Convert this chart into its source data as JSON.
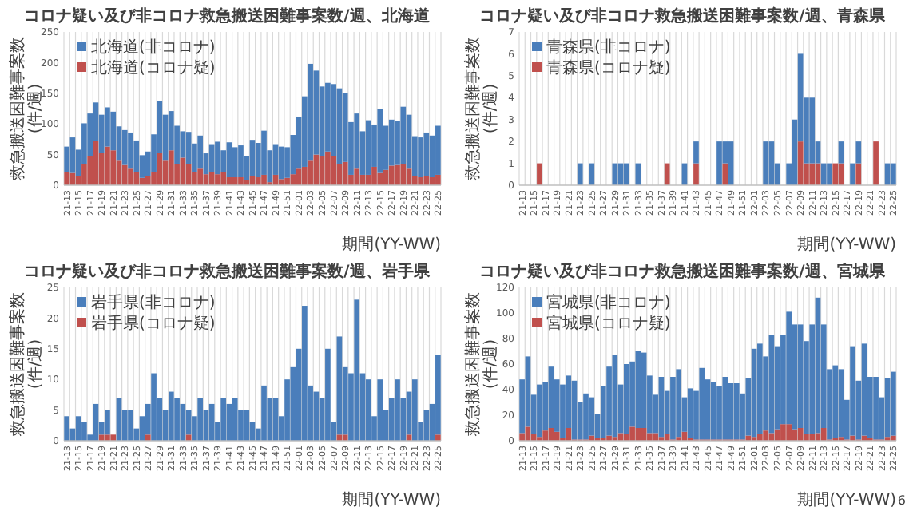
{
  "chart_data": [
    {
      "type": "bar",
      "stacked": true,
      "title": "コロナ疑い及び非コロナ救急搬送困難事案数/週、北海道",
      "ylabel": "救急搬送困難事案数(件/週)",
      "xlabel": "期間(YY-WW)",
      "legend": "top left",
      "grid": "x",
      "categories": [
        "21-13",
        null,
        "21-15",
        null,
        "21-17",
        null,
        "21-19",
        null,
        "21-21",
        null,
        "21-23",
        null,
        "21-25",
        null,
        "21-27",
        null,
        "21-29",
        null,
        "21-31",
        null,
        "21-33",
        null,
        "21-35",
        null,
        "21-37",
        null,
        "21-39",
        null,
        "21-41",
        null,
        "21-43",
        null,
        "21-45",
        null,
        "21-47",
        null,
        "21-49",
        null,
        "21-51",
        null,
        "22-01",
        null,
        "22-03",
        null,
        "22-05",
        null,
        "22-07",
        null,
        "22-09",
        null,
        "22-11",
        null,
        "22-13",
        null,
        "22-15",
        null,
        "22-17",
        null,
        "22-19",
        null,
        "22-21",
        null,
        "22-23",
        null,
        "22-25"
      ],
      "ylim": [
        0,
        250
      ],
      "yticks": [
        0,
        50,
        100,
        150,
        200,
        250
      ],
      "series": [
        {
          "name": "北海道(コロナ疑)",
          "color": "#c0504d",
          "values": [
            22,
            20,
            15,
            35,
            48,
            72,
            53,
            63,
            57,
            40,
            33,
            27,
            22,
            12,
            15,
            22,
            53,
            40,
            57,
            35,
            45,
            35,
            22,
            27,
            18,
            22,
            18,
            22,
            13,
            13,
            13,
            8,
            15,
            13,
            17,
            5,
            17,
            10,
            12,
            18,
            27,
            30,
            40,
            50,
            48,
            55,
            47,
            35,
            38,
            17,
            27,
            17,
            17,
            30,
            20,
            25,
            32,
            33,
            35,
            27,
            15,
            13,
            15,
            13,
            17
          ]
        },
        {
          "name": "北海道(非コロナ)",
          "color": "#4a7ebb",
          "values": [
            41,
            58,
            43,
            66,
            69,
            63,
            62,
            64,
            63,
            56,
            57,
            59,
            51,
            37,
            40,
            61,
            84,
            75,
            64,
            62,
            43,
            52,
            46,
            54,
            34,
            45,
            53,
            35,
            57,
            49,
            52,
            40,
            59,
            56,
            72,
            52,
            50,
            53,
            50,
            64,
            85,
            115,
            158,
            137,
            113,
            112,
            118,
            123,
            112,
            86,
            90,
            71,
            89,
            69,
            104,
            72,
            75,
            72,
            93,
            88,
            65,
            65,
            71,
            68,
            80
          ]
        }
      ]
    },
    {
      "type": "bar",
      "stacked": true,
      "title": "コロナ疑い及び非コロナ救急搬送困難事案数/週、青森県",
      "ylabel": "救急搬送困難事案数(件/週)",
      "xlabel": "期間(YY-WW)",
      "legend": "top left",
      "grid": "x",
      "categories": [
        "21-13",
        null,
        "21-15",
        null,
        "21-17",
        null,
        "21-19",
        null,
        "21-21",
        null,
        "21-23",
        null,
        "21-25",
        null,
        "21-27",
        null,
        "21-29",
        null,
        "21-31",
        null,
        "21-33",
        null,
        "21-35",
        null,
        "21-37",
        null,
        "21-39",
        null,
        "21-41",
        null,
        "21-43",
        null,
        "21-45",
        null,
        "21-47",
        null,
        "21-49",
        null,
        "21-51",
        null,
        "22-01",
        null,
        "22-03",
        null,
        "22-05",
        null,
        "22-07",
        null,
        "22-09",
        null,
        "22-11",
        null,
        "22-13",
        null,
        "22-15",
        null,
        "22-17",
        null,
        "22-19",
        null,
        "22-21",
        null,
        "22-23",
        null,
        "22-25"
      ],
      "ylim": [
        0,
        7
      ],
      "yticks": [
        0,
        1,
        2,
        3,
        4,
        5,
        6,
        7
      ],
      "series": [
        {
          "name": "青森県(コロナ疑)",
          "color": "#c0504d",
          "values": [
            0,
            0,
            0,
            1,
            0,
            0,
            0,
            0,
            0,
            0,
            0,
            0,
            0,
            0,
            0,
            0,
            0,
            0,
            0,
            0,
            0,
            0,
            0,
            0,
            0,
            1,
            0,
            0,
            0,
            0,
            1,
            0,
            0,
            0,
            0,
            1,
            0,
            0,
            0,
            0,
            0,
            0,
            0,
            0,
            0,
            0,
            0,
            0,
            2,
            1,
            1,
            1,
            0,
            0,
            1,
            1,
            0,
            0,
            1,
            0,
            0,
            2,
            0,
            0,
            0
          ]
        },
        {
          "name": "青森県(非コロナ)",
          "color": "#4a7ebb",
          "values": [
            0,
            0,
            0,
            0,
            0,
            0,
            0,
            0,
            0,
            0,
            1,
            0,
            1,
            0,
            0,
            0,
            1,
            1,
            1,
            0,
            1,
            0,
            0,
            0,
            0,
            0,
            0,
            0,
            1,
            0,
            1,
            0,
            0,
            0,
            2,
            1,
            2,
            0,
            0,
            0,
            0,
            0,
            2,
            2,
            1,
            0,
            1,
            3,
            4,
            3,
            3,
            1,
            1,
            1,
            0,
            1,
            0,
            1,
            1,
            0,
            0,
            0,
            0,
            1,
            1
          ]
        }
      ]
    },
    {
      "type": "bar",
      "stacked": true,
      "title": "コロナ疑い及び非コロナ救急搬送困難事案数/週、岩手県",
      "ylabel": "救急搬送困難事案数(件/週)",
      "xlabel": "期間(YY-WW)",
      "legend": "top left",
      "grid": "x",
      "categories": [
        "21-13",
        null,
        "21-15",
        null,
        "21-17",
        null,
        "21-19",
        null,
        "21-21",
        null,
        "21-23",
        null,
        "21-25",
        null,
        "21-27",
        null,
        "21-29",
        null,
        "21-31",
        null,
        "21-33",
        null,
        "21-35",
        null,
        "21-37",
        null,
        "21-39",
        null,
        "21-41",
        null,
        "21-43",
        null,
        "21-45",
        null,
        "21-47",
        null,
        "21-49",
        null,
        "21-51",
        null,
        "22-01",
        null,
        "22-03",
        null,
        "22-05",
        null,
        "22-07",
        null,
        "22-09",
        null,
        "22-11",
        null,
        "22-13",
        null,
        "22-15",
        null,
        "22-17",
        null,
        "22-19",
        null,
        "22-21",
        null,
        "22-23",
        null,
        "22-25"
      ],
      "ylim": [
        0,
        25
      ],
      "yticks": [
        0,
        5,
        10,
        15,
        20,
        25
      ],
      "series": [
        {
          "name": "岩手県(コロナ疑)",
          "color": "#c0504d",
          "values": [
            0,
            0,
            0,
            0,
            0,
            0,
            1,
            1,
            1,
            0,
            0,
            0,
            0,
            0,
            1,
            0,
            0,
            0,
            0,
            0,
            0,
            1,
            0,
            0,
            0,
            0,
            0,
            0,
            0,
            0,
            0,
            0,
            0,
            0,
            0,
            0,
            0,
            0,
            0,
            0,
            0,
            0,
            0,
            0,
            0,
            0,
            0,
            1,
            1,
            0,
            0,
            0,
            0,
            0,
            0,
            0,
            0,
            0,
            0,
            1,
            0,
            0,
            0,
            0,
            1
          ]
        },
        {
          "name": "岩手県(非コロナ)",
          "color": "#4a7ebb",
          "values": [
            4,
            2,
            4,
            3,
            1,
            6,
            2,
            4,
            0,
            7,
            5,
            5,
            2,
            4,
            5,
            11,
            7,
            5,
            8,
            7,
            6,
            4,
            4,
            7,
            5,
            6,
            3,
            7,
            6,
            7,
            5,
            5,
            3,
            2,
            9,
            7,
            7,
            4,
            10,
            12,
            15,
            22,
            9,
            8,
            7,
            15,
            3,
            16,
            11,
            11,
            23,
            11,
            10,
            4,
            10,
            5,
            7,
            10,
            7,
            7,
            10,
            3,
            5,
            6,
            13
          ]
        }
      ]
    },
    {
      "type": "bar",
      "stacked": true,
      "title": "コロナ疑い及び非コロナ救急搬送困難事案数/週、宮城県",
      "ylabel": "救急搬送困難事案数(件/週)",
      "xlabel": "期間(YY-WW)",
      "legend": "top left",
      "grid": "x",
      "annotations": [
        "6"
      ],
      "categories": [
        "21-13",
        null,
        "21-15",
        null,
        "21-17",
        null,
        "21-19",
        null,
        "21-21",
        null,
        "21-23",
        null,
        "21-25",
        null,
        "21-27",
        null,
        "21-29",
        null,
        "21-31",
        null,
        "21-33",
        null,
        "21-35",
        null,
        "21-37",
        null,
        "21-39",
        null,
        "21-41",
        null,
        "21-43",
        null,
        "21-45",
        null,
        "21-47",
        null,
        "21-49",
        null,
        "21-51",
        null,
        "22-01",
        null,
        "22-03",
        null,
        "22-05",
        null,
        "22-07",
        null,
        "22-09",
        null,
        "22-11",
        null,
        "22-13",
        null,
        "22-15",
        null,
        "22-17",
        null,
        "22-19",
        null,
        "22-21",
        null,
        "22-23",
        null,
        "22-25"
      ],
      "ylim": [
        0,
        120
      ],
      "yticks": [
        0,
        20,
        40,
        60,
        80,
        100,
        120
      ],
      "series": [
        {
          "name": "宮城県(コロナ疑)",
          "color": "#c0504d",
          "values": [
            6,
            11,
            5,
            3,
            8,
            10,
            7,
            2,
            10,
            1,
            1,
            1,
            4,
            2,
            2,
            4,
            3,
            6,
            5,
            11,
            10,
            10,
            6,
            6,
            3,
            5,
            1,
            3,
            7,
            2,
            1,
            1,
            1,
            1,
            1,
            1,
            1,
            1,
            1,
            4,
            3,
            5,
            8,
            6,
            9,
            13,
            13,
            9,
            10,
            5,
            5,
            6,
            10,
            1,
            2,
            3,
            1,
            4,
            1,
            4,
            2,
            1,
            1,
            3,
            4
          ]
        },
        {
          "name": "宮城県(非コロナ)",
          "color": "#4a7ebb",
          "values": [
            42,
            55,
            31,
            41,
            38,
            48,
            41,
            42,
            41,
            46,
            29,
            36,
            30,
            19,
            41,
            54,
            64,
            38,
            55,
            51,
            60,
            59,
            45,
            30,
            47,
            34,
            49,
            53,
            27,
            39,
            38,
            56,
            47,
            45,
            42,
            49,
            44,
            44,
            36,
            45,
            69,
            71,
            58,
            77,
            65,
            70,
            88,
            82,
            81,
            73,
            86,
            106,
            81,
            55,
            57,
            53,
            31,
            70,
            46,
            72,
            48,
            49,
            33,
            46,
            50
          ]
        }
      ]
    }
  ]
}
